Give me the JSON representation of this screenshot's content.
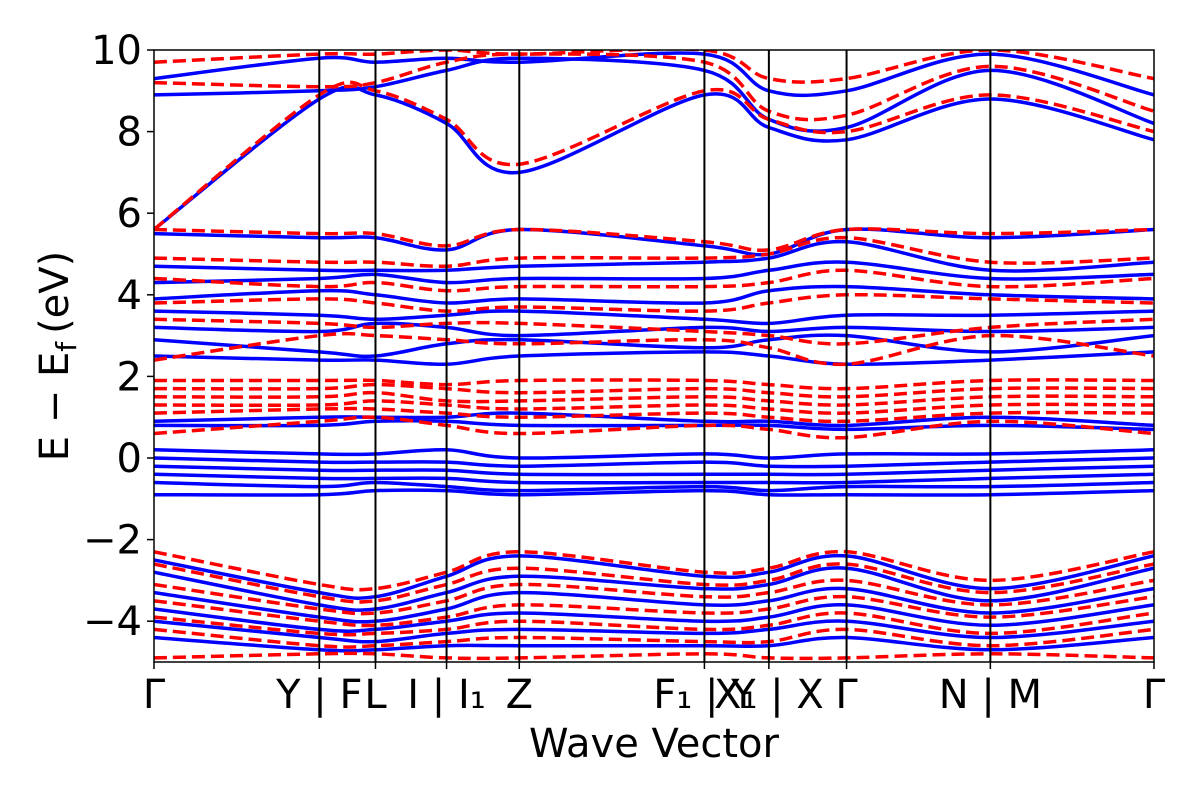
{
  "chart_data": {
    "type": "line",
    "xlabel": "Wave Vector",
    "ylabel": "E − E",
    "ylabel_subscript": "f",
    "ylabel_unit": "(eV)",
    "ylim": [
      -5,
      10
    ],
    "yticks": [
      -4,
      -2,
      0,
      2,
      4,
      6,
      8,
      10
    ],
    "ytick_labels": [
      "−4",
      "−2",
      "0",
      "2",
      "4",
      "6",
      "8",
      "10"
    ],
    "xlim": [
      0,
      6.05
    ],
    "kpath": [
      {
        "label": "Γ",
        "x": 0
      },
      {
        "label": "Y | F",
        "x": 1.0
      },
      {
        "label": "L",
        "x": 1.34
      },
      {
        "label": "I | I₁",
        "x": 1.77
      },
      {
        "label": "Z",
        "x": 2.21
      },
      {
        "label": "F₁ | Y",
        "x": 3.33
      },
      {
        "label": "X₁ | X",
        "x": 3.72
      },
      {
        "label": "Γ",
        "x": 4.19
      },
      {
        "label": "N | M",
        "x": 5.06
      },
      {
        "label": "Γ",
        "x": 6.05
      }
    ],
    "colors": {
      "spin_up": "#0000ff",
      "spin_down": "#ff0000",
      "vline": "#000000"
    },
    "series": [
      {
        "style": "solid-blue",
        "values": [
          [
            5.6,
            8.8,
            8.9,
            8.2,
            7.0,
            8.9,
            8.1,
            7.8,
            8.8,
            7.8
          ],
          [
            8.9,
            9.0,
            9.1,
            9.5,
            9.8,
            9.5,
            8.3,
            8.1,
            9.5,
            8.2
          ],
          [
            9.3,
            9.8,
            9.7,
            9.8,
            9.7,
            9.9,
            9.0,
            9.0,
            9.9,
            8.9
          ],
          [
            5.5,
            5.4,
            5.4,
            5.1,
            5.6,
            5.2,
            5.0,
            5.6,
            5.4,
            5.6
          ],
          [
            4.7,
            4.6,
            4.6,
            4.6,
            4.7,
            4.8,
            4.9,
            5.3,
            4.6,
            4.8
          ],
          [
            4.3,
            4.4,
            4.5,
            4.3,
            4.4,
            4.4,
            4.6,
            4.8,
            4.4,
            4.5
          ],
          [
            3.9,
            4.1,
            4.0,
            3.8,
            3.9,
            3.8,
            4.1,
            4.2,
            4.0,
            3.9
          ],
          [
            3.6,
            3.5,
            3.4,
            3.5,
            3.6,
            3.4,
            3.3,
            3.5,
            3.5,
            3.6
          ],
          [
            3.2,
            3.1,
            3.3,
            3.2,
            3.0,
            3.2,
            3.1,
            3.2,
            3.1,
            3.2
          ],
          [
            2.9,
            2.6,
            2.5,
            2.8,
            2.9,
            2.7,
            2.9,
            3.0,
            2.6,
            3.0
          ],
          [
            2.5,
            2.4,
            2.4,
            2.3,
            2.5,
            2.6,
            2.5,
            2.3,
            2.4,
            2.6
          ],
          [
            0.9,
            1.0,
            1.0,
            1.0,
            1.1,
            0.9,
            0.9,
            0.8,
            1.0,
            0.8
          ],
          [
            0.8,
            0.8,
            0.9,
            0.9,
            0.8,
            0.8,
            0.8,
            0.7,
            0.8,
            0.7
          ],
          [
            0.2,
            0.1,
            0.1,
            0.2,
            0.0,
            0.1,
            0.0,
            0.1,
            0.1,
            0.2
          ],
          [
            0.0,
            -0.1,
            -0.1,
            -0.1,
            -0.2,
            -0.1,
            -0.2,
            -0.2,
            -0.1,
            0.0
          ],
          [
            -0.2,
            -0.3,
            -0.3,
            -0.3,
            -0.4,
            -0.4,
            -0.4,
            -0.4,
            -0.3,
            -0.2
          ],
          [
            -0.4,
            -0.5,
            -0.5,
            -0.5,
            -0.6,
            -0.6,
            -0.6,
            -0.6,
            -0.5,
            -0.4
          ],
          [
            -0.6,
            -0.7,
            -0.6,
            -0.7,
            -0.8,
            -0.7,
            -0.8,
            -0.7,
            -0.7,
            -0.6
          ],
          [
            -0.9,
            -0.9,
            -0.8,
            -0.8,
            -0.9,
            -0.8,
            -0.9,
            -0.9,
            -0.9,
            -0.8
          ],
          [
            -2.5,
            -3.3,
            -3.4,
            -2.9,
            -2.4,
            -2.9,
            -2.8,
            -2.4,
            -3.2,
            -2.4
          ],
          [
            -2.8,
            -3.6,
            -3.7,
            -3.3,
            -2.9,
            -3.2,
            -3.1,
            -2.7,
            -3.5,
            -2.7
          ],
          [
            -3.3,
            -3.9,
            -4.0,
            -3.7,
            -3.3,
            -3.6,
            -3.5,
            -3.2,
            -3.8,
            -3.2
          ],
          [
            -3.7,
            -4.2,
            -4.2,
            -4.0,
            -3.8,
            -4.0,
            -3.9,
            -3.6,
            -4.1,
            -3.6
          ],
          [
            -4.0,
            -4.4,
            -4.5,
            -4.3,
            -4.2,
            -4.3,
            -4.2,
            -4.0,
            -4.4,
            -4.0
          ],
          [
            -4.4,
            -4.7,
            -4.7,
            -4.6,
            -4.6,
            -4.6,
            -4.6,
            -4.4,
            -4.7,
            -4.4
          ]
        ]
      },
      {
        "style": "dashed-red",
        "values": [
          [
            5.6,
            8.9,
            9.0,
            8.3,
            7.2,
            9.0,
            8.3,
            8.0,
            8.9,
            8.0
          ],
          [
            9.2,
            9.1,
            9.2,
            9.7,
            9.9,
            9.7,
            8.5,
            8.4,
            9.6,
            8.5
          ],
          [
            9.7,
            9.9,
            9.9,
            10.0,
            9.9,
            10.0,
            9.3,
            9.3,
            10.0,
            9.3
          ],
          [
            5.6,
            5.5,
            5.5,
            5.2,
            5.6,
            5.3,
            5.1,
            5.6,
            5.5,
            5.6
          ],
          [
            4.9,
            4.8,
            4.8,
            4.7,
            4.9,
            4.9,
            5.0,
            5.4,
            4.8,
            4.9
          ],
          [
            4.4,
            4.2,
            4.3,
            4.1,
            4.2,
            4.2,
            4.3,
            4.6,
            4.2,
            4.4
          ],
          [
            3.8,
            3.9,
            3.8,
            3.6,
            3.7,
            3.6,
            3.8,
            4.0,
            3.9,
            3.8
          ],
          [
            3.4,
            3.3,
            3.2,
            3.3,
            3.3,
            3.1,
            3.0,
            2.8,
            3.2,
            3.4
          ],
          [
            2.4,
            3.0,
            3.0,
            2.9,
            2.8,
            2.9,
            2.7,
            2.3,
            3.0,
            2.5
          ],
          [
            1.9,
            1.9,
            1.9,
            1.8,
            1.9,
            1.9,
            1.8,
            1.7,
            1.9,
            1.9
          ],
          [
            1.7,
            1.7,
            1.8,
            1.7,
            1.6,
            1.7,
            1.6,
            1.5,
            1.7,
            1.7
          ],
          [
            1.5,
            1.5,
            1.6,
            1.4,
            1.4,
            1.5,
            1.4,
            1.3,
            1.5,
            1.5
          ],
          [
            1.3,
            1.3,
            1.4,
            1.3,
            1.2,
            1.3,
            1.2,
            1.1,
            1.3,
            1.3
          ],
          [
            1.1,
            1.2,
            1.2,
            1.1,
            1.0,
            1.1,
            1.0,
            0.9,
            1.1,
            1.1
          ],
          [
            0.6,
            0.9,
            1.0,
            0.8,
            0.6,
            0.8,
            0.7,
            0.5,
            0.9,
            0.6
          ],
          [
            -2.3,
            -3.1,
            -3.2,
            -2.8,
            -2.3,
            -2.8,
            -2.7,
            -2.3,
            -3.0,
            -2.3
          ],
          [
            -2.6,
            -3.4,
            -3.5,
            -3.1,
            -2.7,
            -3.1,
            -3.0,
            -2.6,
            -3.3,
            -2.6
          ],
          [
            -3.1,
            -3.7,
            -3.8,
            -3.5,
            -3.1,
            -3.4,
            -3.3,
            -3.0,
            -3.6,
            -3.0
          ],
          [
            -3.5,
            -4.0,
            -4.1,
            -3.9,
            -3.6,
            -3.8,
            -3.7,
            -3.4,
            -3.9,
            -3.4
          ],
          [
            -3.9,
            -4.3,
            -4.3,
            -4.2,
            -4.0,
            -4.2,
            -4.1,
            -3.8,
            -4.3,
            -3.8
          ],
          [
            -4.2,
            -4.6,
            -4.6,
            -4.5,
            -4.4,
            -4.5,
            -4.5,
            -4.2,
            -4.6,
            -4.2
          ],
          [
            -4.9,
            -4.8,
            -4.8,
            -4.9,
            -4.9,
            -4.8,
            -4.9,
            -4.9,
            -4.8,
            -4.9
          ]
        ]
      }
    ]
  }
}
